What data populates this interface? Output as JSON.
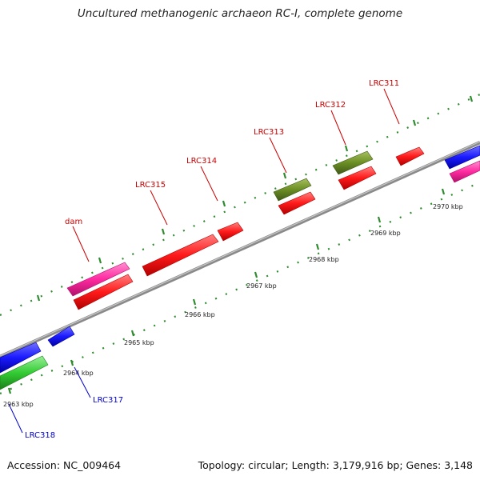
{
  "title": "Uncultured methanogenic archaeon RC-I, complete genome",
  "accession": "Accession: NC_009464",
  "summary": "Topology: circular; Length: 3,179,916 bp; Genes: 3,148",
  "scale_labels": [
    "2963 kbp",
    "2964 kbp",
    "2965 kbp",
    "2966 kbp",
    "2967 kbp",
    "2968 kbp",
    "2969 kbp",
    "2970 kbp"
  ],
  "gene_labels": [
    "LRC311",
    "LRC312",
    "LRC313",
    "LRC314",
    "LRC315",
    "dam",
    "LRC317",
    "LRC318"
  ],
  "colors": {
    "red": "#ff1a1a",
    "magenta": "#ff2aa0",
    "olive": "#6b8e23",
    "blue": "#1a1aff",
    "green": "#33cc33",
    "backbone": "#8a8a8a",
    "tick": "#2e8b2e",
    "label_red": "#cc0000",
    "label_blue": "#0000cc"
  }
}
